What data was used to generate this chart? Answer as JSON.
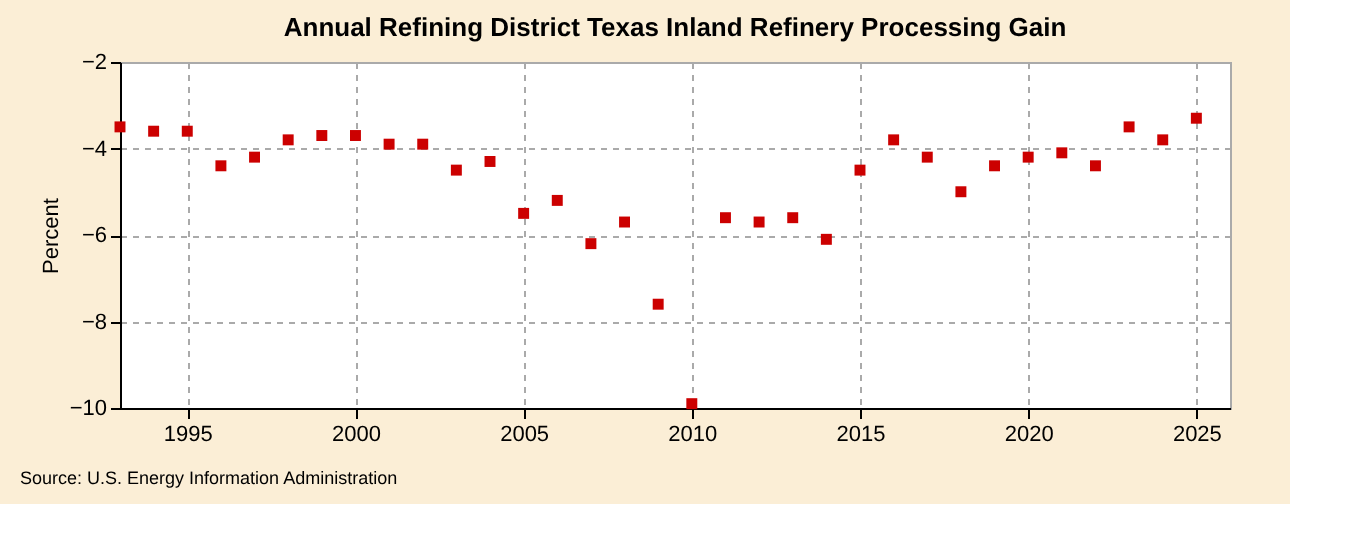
{
  "chart_data": {
    "type": "scatter",
    "title": "Annual Refining District Texas Inland Refinery Processing Gain",
    "ylabel": "Percent",
    "x": [
      1993,
      1994,
      1995,
      1996,
      1997,
      1998,
      1999,
      2000,
      2001,
      2002,
      2003,
      2004,
      2005,
      2006,
      2007,
      2008,
      2009,
      2010,
      2011,
      2012,
      2013,
      2014,
      2015,
      2016,
      2017,
      2018,
      2019,
      2020,
      2021,
      2022,
      2023,
      2024,
      2025
    ],
    "series": [
      {
        "color": "#cc0000",
        "values": [
          -3.5,
          -3.6,
          -3.6,
          -4.4,
          -4.2,
          -3.8,
          -3.7,
          -3.7,
          -3.9,
          -3.9,
          -4.5,
          -4.3,
          -5.5,
          -5.2,
          -6.2,
          -5.7,
          -7.6,
          -9.9,
          -5.6,
          -5.7,
          -5.6,
          -6.1,
          -4.5,
          -3.8,
          -4.2,
          -5.0,
          -4.4,
          -4.2,
          -4.1,
          -4.4,
          -3.5,
          -3.8,
          -3.3
        ]
      }
    ],
    "xlim": [
      1993,
      2026
    ],
    "xticks": [
      1995,
      2000,
      2005,
      2010,
      2015,
      2020,
      2025
    ],
    "ylim": [
      -10,
      -2
    ],
    "yticks": [
      -10,
      -8,
      -6,
      -4,
      -2
    ],
    "grid": true,
    "marker": "square",
    "annotations": [
      "Source: U.S. Energy Information Administration"
    ]
  }
}
